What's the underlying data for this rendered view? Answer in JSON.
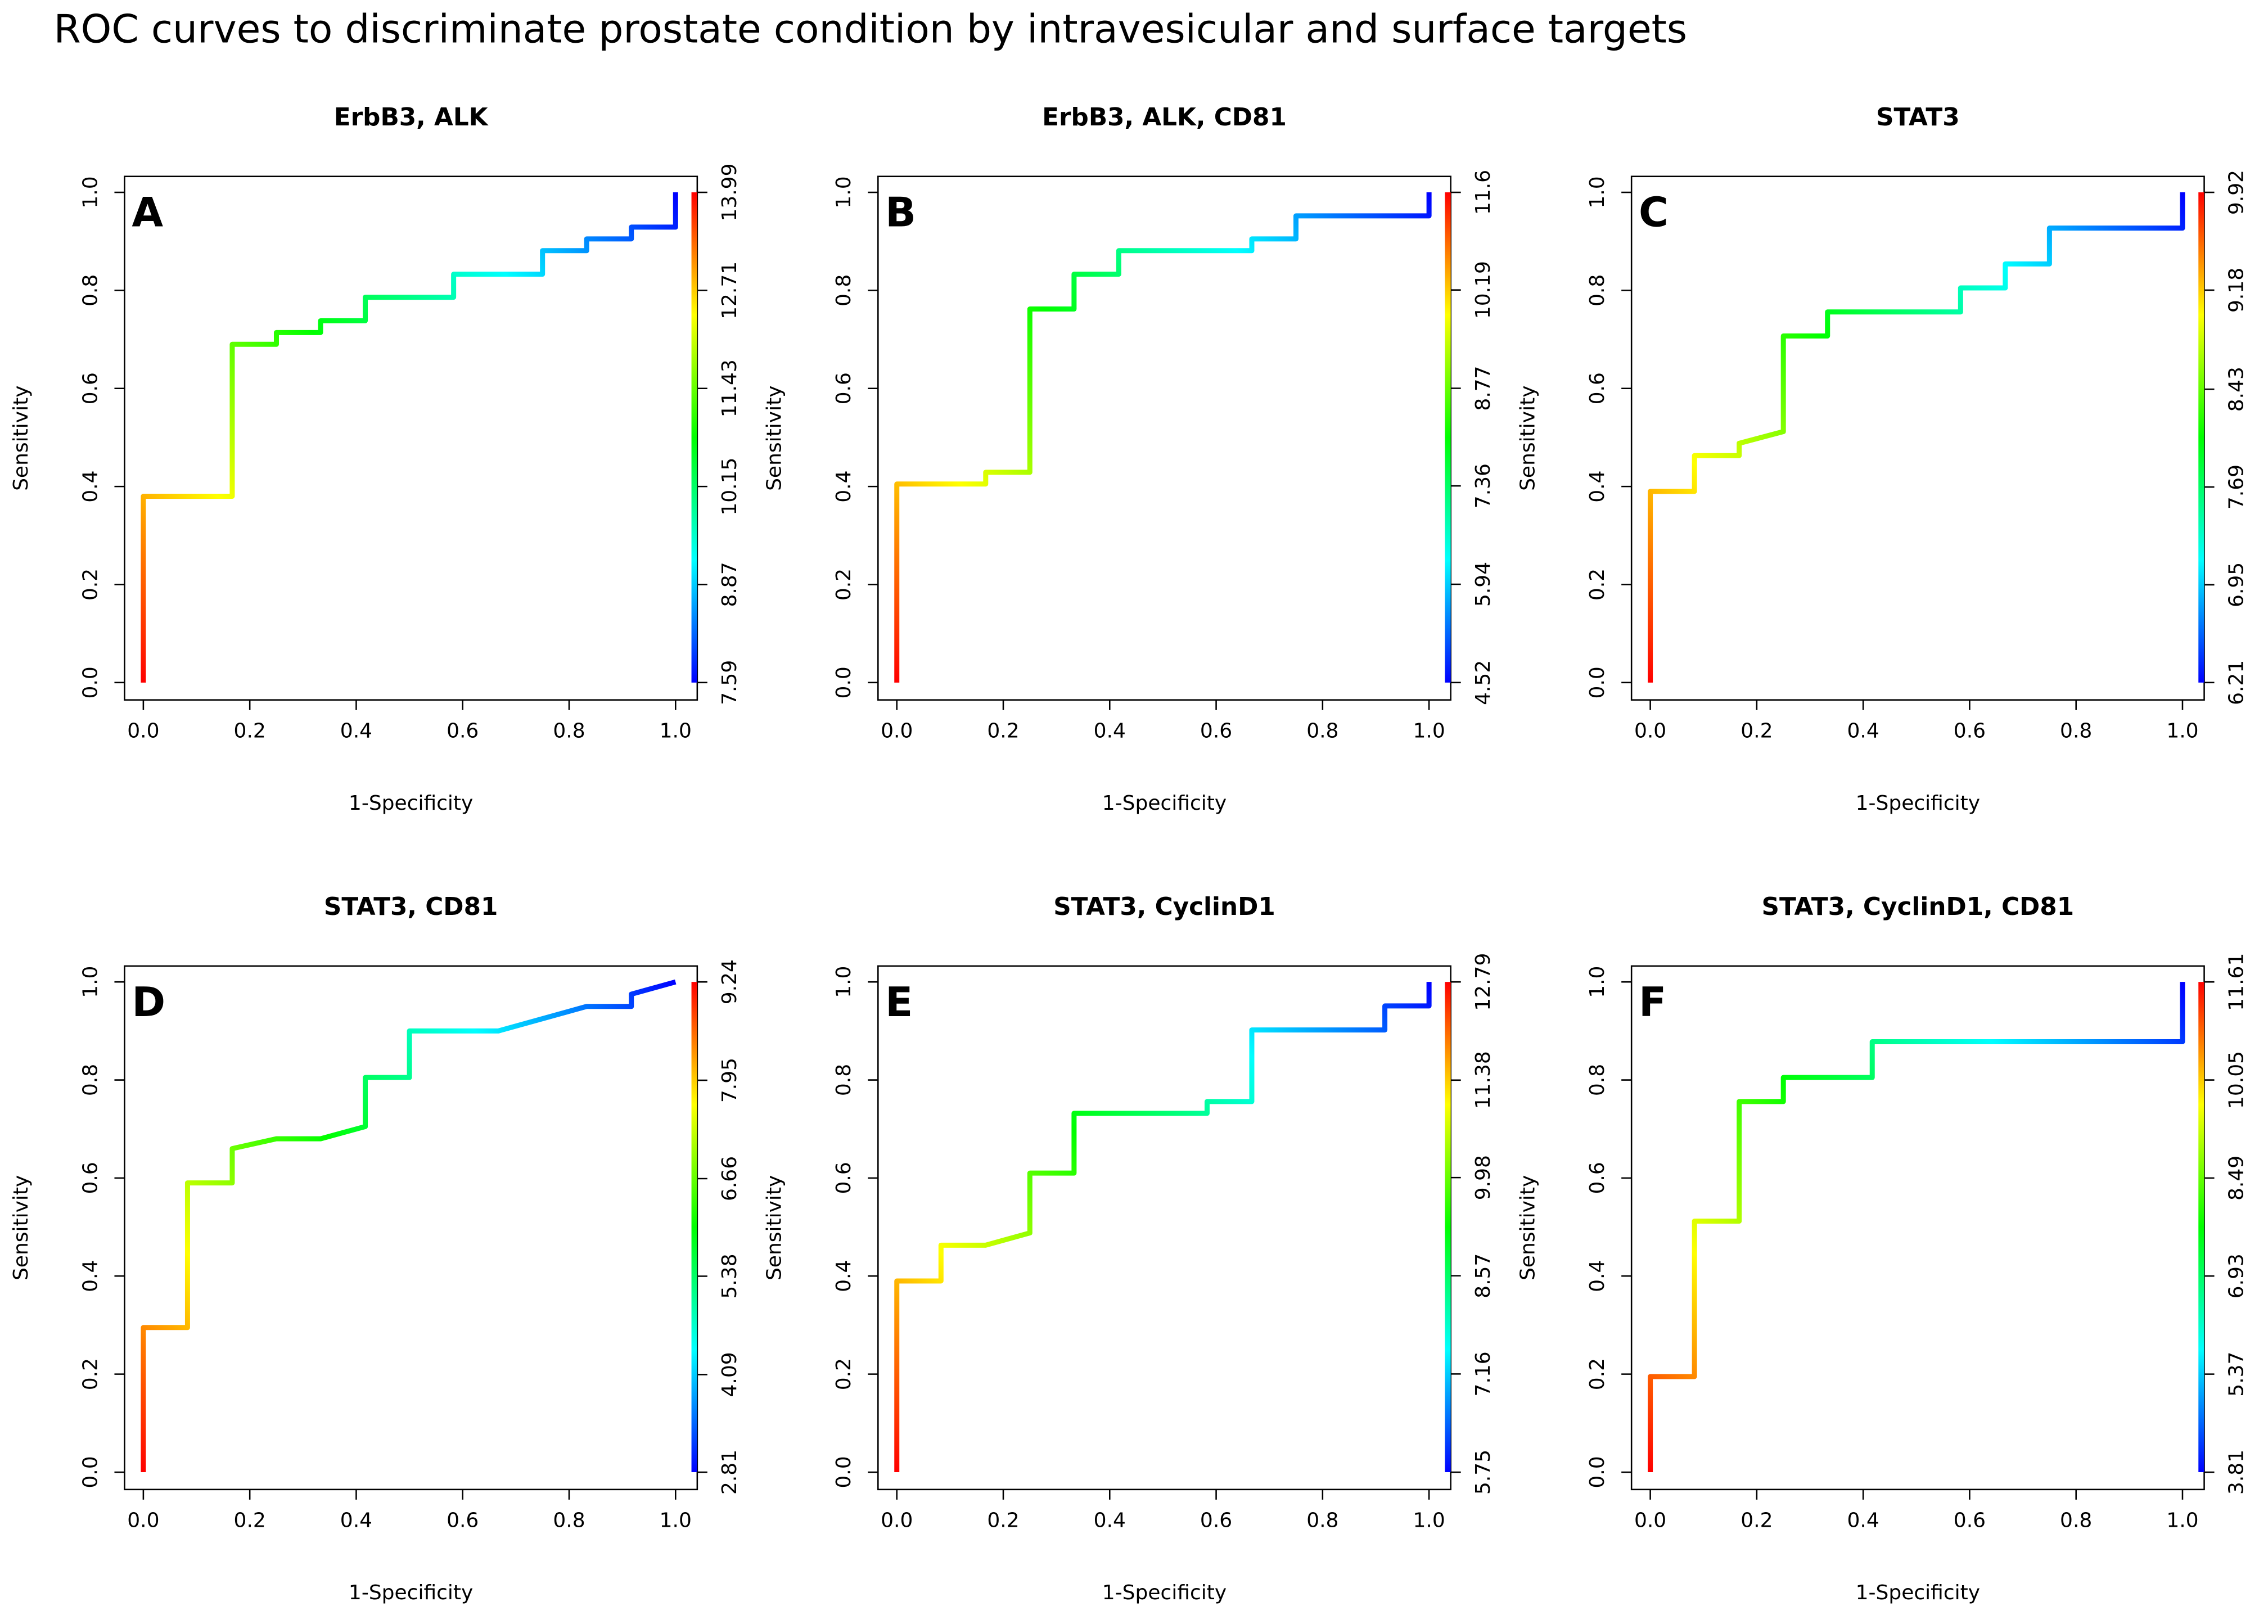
{
  "figure_title": "ROC curves to discriminate prostate condition by intravesicular and surface targets",
  "chart_data": [
    {
      "type": "line",
      "title": "ErbB3, ALK",
      "panel_label": "A",
      "xlabel": "1-Specificity",
      "ylabel": "Sensitivity",
      "x": [
        0,
        0,
        0.167,
        0.167,
        0.25,
        0.25,
        0.333,
        0.333,
        0.417,
        0.417,
        0.583,
        0.583,
        0.75,
        0.75,
        0.833,
        0.833,
        0.917,
        0.917,
        1,
        1
      ],
      "values": [
        0,
        0.38,
        0.38,
        0.69,
        0.69,
        0.714,
        0.714,
        0.738,
        0.738,
        0.786,
        0.786,
        0.833,
        0.833,
        0.881,
        0.881,
        0.905,
        0.905,
        0.929,
        0.929,
        1
      ],
      "colors": [
        "#ff0000",
        "#ffff00",
        "#00ff00",
        "#00ffff",
        "#0000ff"
      ],
      "xlim": [
        0,
        1
      ],
      "ylim": [
        0,
        1
      ],
      "xticks": [
        {
          "value": 0,
          "label": "0.0"
        },
        {
          "value": 0.2,
          "label": "0.2"
        },
        {
          "value": 0.4,
          "label": "0.4"
        },
        {
          "value": 0.6,
          "label": "0.6"
        },
        {
          "value": 0.8,
          "label": "0.8"
        },
        {
          "value": 1,
          "label": "1.0"
        }
      ],
      "yticks": [
        {
          "value": 0,
          "label": "0.0"
        },
        {
          "value": 0.2,
          "label": "0.2"
        },
        {
          "value": 0.4,
          "label": "0.4"
        },
        {
          "value": 0.6,
          "label": "0.6"
        },
        {
          "value": 0.8,
          "label": "0.8"
        },
        {
          "value": 1,
          "label": "1.0"
        }
      ],
      "y2lim": [
        7.59,
        13.99
      ],
      "y2ticks": [
        7.59,
        8.87,
        10.15,
        11.43,
        12.71,
        13.99
      ]
    },
    {
      "type": "line",
      "title": "ErbB3, ALK, CD81",
      "panel_label": "B",
      "xlabel": "1-Specificity",
      "ylabel": "Sensitivity",
      "x": [
        0,
        0,
        0.167,
        0.167,
        0.25,
        0.25,
        0.333,
        0.333,
        0.417,
        0.417,
        0.667,
        0.667,
        0.75,
        0.75,
        1,
        1
      ],
      "values": [
        0,
        0.405,
        0.405,
        0.429,
        0.429,
        0.762,
        0.762,
        0.833,
        0.833,
        0.881,
        0.881,
        0.905,
        0.905,
        0.952,
        0.952,
        1
      ],
      "colors": [
        "#ff0000",
        "#ffff00",
        "#00ff00",
        "#00ffff",
        "#0000ff"
      ],
      "xlim": [
        0,
        1
      ],
      "ylim": [
        0,
        1
      ],
      "xticks": [
        {
          "value": 0,
          "label": "0.0"
        },
        {
          "value": 0.2,
          "label": "0.2"
        },
        {
          "value": 0.4,
          "label": "0.4"
        },
        {
          "value": 0.6,
          "label": "0.6"
        },
        {
          "value": 0.8,
          "label": "0.8"
        },
        {
          "value": 1,
          "label": "1.0"
        }
      ],
      "yticks": [
        {
          "value": 0,
          "label": "0.0"
        },
        {
          "value": 0.2,
          "label": "0.2"
        },
        {
          "value": 0.4,
          "label": "0.4"
        },
        {
          "value": 0.6,
          "label": "0.6"
        },
        {
          "value": 0.8,
          "label": "0.8"
        },
        {
          "value": 1,
          "label": "1.0"
        }
      ],
      "y2lim": [
        4.52,
        11.6
      ],
      "y2ticks": [
        4.52,
        5.94,
        7.36,
        8.77,
        10.19,
        11.6
      ]
    },
    {
      "type": "line",
      "title": "STAT3",
      "panel_label": "C",
      "xlabel": "1-Specificity",
      "ylabel": "Sensitivity",
      "x": [
        0,
        0,
        0.083,
        0.083,
        0.167,
        0.167,
        0.25,
        0.25,
        0.333,
        0.333,
        0.583,
        0.583,
        0.667,
        0.667,
        0.75,
        0.75,
        1,
        1
      ],
      "values": [
        0,
        0.39,
        0.39,
        0.463,
        0.463,
        0.488,
        0.512,
        0.707,
        0.707,
        0.756,
        0.756,
        0.805,
        0.805,
        0.854,
        0.854,
        0.927,
        0.927,
        1
      ],
      "colors": [
        "#ff0000",
        "#ffff00",
        "#00ff00",
        "#00ffff",
        "#0000ff"
      ],
      "xlim": [
        0,
        1
      ],
      "ylim": [
        0,
        1
      ],
      "xticks": [
        {
          "value": 0,
          "label": "0.0"
        },
        {
          "value": 0.2,
          "label": "0.2"
        },
        {
          "value": 0.4,
          "label": "0.4"
        },
        {
          "value": 0.6,
          "label": "0.6"
        },
        {
          "value": 0.8,
          "label": "0.8"
        },
        {
          "value": 1,
          "label": "1.0"
        }
      ],
      "yticks": [
        {
          "value": 0,
          "label": "0.0"
        },
        {
          "value": 0.2,
          "label": "0.2"
        },
        {
          "value": 0.4,
          "label": "0.4"
        },
        {
          "value": 0.6,
          "label": "0.6"
        },
        {
          "value": 0.8,
          "label": "0.8"
        },
        {
          "value": 1,
          "label": "1.0"
        }
      ],
      "y2lim": [
        6.21,
        9.92
      ],
      "y2ticks": [
        6.21,
        6.95,
        7.69,
        8.43,
        9.18,
        9.92
      ]
    },
    {
      "type": "line",
      "title": "STAT3, CD81",
      "panel_label": "D",
      "xlabel": "1-Specificity",
      "ylabel": "Sensitivity",
      "x": [
        0,
        0,
        0.083,
        0.083,
        0.167,
        0.167,
        0.25,
        0.333,
        0.417,
        0.417,
        0.5,
        0.5,
        0.667,
        0.833,
        0.917,
        0.917,
        1
      ],
      "values": [
        0,
        0.295,
        0.295,
        0.59,
        0.59,
        0.66,
        0.68,
        0.68,
        0.705,
        0.805,
        0.805,
        0.9,
        0.9,
        0.95,
        0.95,
        0.975,
        1
      ],
      "colors": [
        "#ff0000",
        "#ffff00",
        "#00ff00",
        "#00ffff",
        "#0000ff"
      ],
      "xlim": [
        0,
        1
      ],
      "ylim": [
        0,
        1
      ],
      "xticks": [
        {
          "value": 0,
          "label": "0.0"
        },
        {
          "value": 0.2,
          "label": "0.2"
        },
        {
          "value": 0.4,
          "label": "0.4"
        },
        {
          "value": 0.6,
          "label": "0.6"
        },
        {
          "value": 0.8,
          "label": "0.8"
        },
        {
          "value": 1,
          "label": "1.0"
        }
      ],
      "yticks": [
        {
          "value": 0,
          "label": "0.0"
        },
        {
          "value": 0.2,
          "label": "0.2"
        },
        {
          "value": 0.4,
          "label": "0.4"
        },
        {
          "value": 0.6,
          "label": "0.6"
        },
        {
          "value": 0.8,
          "label": "0.8"
        },
        {
          "value": 1,
          "label": "1.0"
        }
      ],
      "y2lim": [
        2.81,
        9.24
      ],
      "y2ticks": [
        2.81,
        4.09,
        5.38,
        6.66,
        7.95,
        9.24
      ]
    },
    {
      "type": "line",
      "title": "STAT3, CyclinD1",
      "panel_label": "E",
      "xlabel": "1-Specificity",
      "ylabel": "Sensitivity",
      "x": [
        0,
        0,
        0.083,
        0.083,
        0.167,
        0.25,
        0.25,
        0.333,
        0.333,
        0.583,
        0.583,
        0.667,
        0.667,
        0.917,
        0.917,
        1,
        1
      ],
      "values": [
        0,
        0.39,
        0.39,
        0.463,
        0.463,
        0.488,
        0.61,
        0.61,
        0.732,
        0.732,
        0.756,
        0.756,
        0.902,
        0.902,
        0.951,
        0.951,
        1
      ],
      "colors": [
        "#ff0000",
        "#ffff00",
        "#00ff00",
        "#00ffff",
        "#0000ff"
      ],
      "xlim": [
        0,
        1
      ],
      "ylim": [
        0,
        1
      ],
      "xticks": [
        {
          "value": 0,
          "label": "0.0"
        },
        {
          "value": 0.2,
          "label": "0.2"
        },
        {
          "value": 0.4,
          "label": "0.4"
        },
        {
          "value": 0.6,
          "label": "0.6"
        },
        {
          "value": 0.8,
          "label": "0.8"
        },
        {
          "value": 1,
          "label": "1.0"
        }
      ],
      "yticks": [
        {
          "value": 0,
          "label": "0.0"
        },
        {
          "value": 0.2,
          "label": "0.2"
        },
        {
          "value": 0.4,
          "label": "0.4"
        },
        {
          "value": 0.6,
          "label": "0.6"
        },
        {
          "value": 0.8,
          "label": "0.8"
        },
        {
          "value": 1,
          "label": "1.0"
        }
      ],
      "y2lim": [
        5.75,
        12.79
      ],
      "y2ticks": [
        5.75,
        7.16,
        8.57,
        9.98,
        11.38,
        12.79
      ]
    },
    {
      "type": "line",
      "title": "STAT3, CyclinD1, CD81",
      "panel_label": "F",
      "xlabel": "1-Specificity",
      "ylabel": "Sensitivity",
      "x": [
        0,
        0,
        0.083,
        0.083,
        0.167,
        0.167,
        0.25,
        0.25,
        0.417,
        0.417,
        1,
        1
      ],
      "values": [
        0,
        0.195,
        0.195,
        0.512,
        0.512,
        0.756,
        0.756,
        0.805,
        0.805,
        0.878,
        0.878,
        1
      ],
      "colors": [
        "#ff0000",
        "#ffff00",
        "#00ff00",
        "#00ffff",
        "#0000ff"
      ],
      "xlim": [
        0,
        1
      ],
      "ylim": [
        0,
        1
      ],
      "xticks": [
        {
          "value": 0,
          "label": "0.0"
        },
        {
          "value": 0.2,
          "label": "0.2"
        },
        {
          "value": 0.4,
          "label": "0.4"
        },
        {
          "value": 0.6,
          "label": "0.6"
        },
        {
          "value": 0.8,
          "label": "0.8"
        },
        {
          "value": 1,
          "label": "1.0"
        }
      ],
      "yticks": [
        {
          "value": 0,
          "label": "0.0"
        },
        {
          "value": 0.2,
          "label": "0.2"
        },
        {
          "value": 0.4,
          "label": "0.4"
        },
        {
          "value": 0.6,
          "label": "0.6"
        },
        {
          "value": 0.8,
          "label": "0.8"
        },
        {
          "value": 1,
          "label": "1.0"
        }
      ],
      "y2lim": [
        3.81,
        11.61
      ],
      "y2ticks": [
        3.81,
        5.37,
        6.93,
        8.49,
        10.05,
        11.61
      ]
    }
  ]
}
